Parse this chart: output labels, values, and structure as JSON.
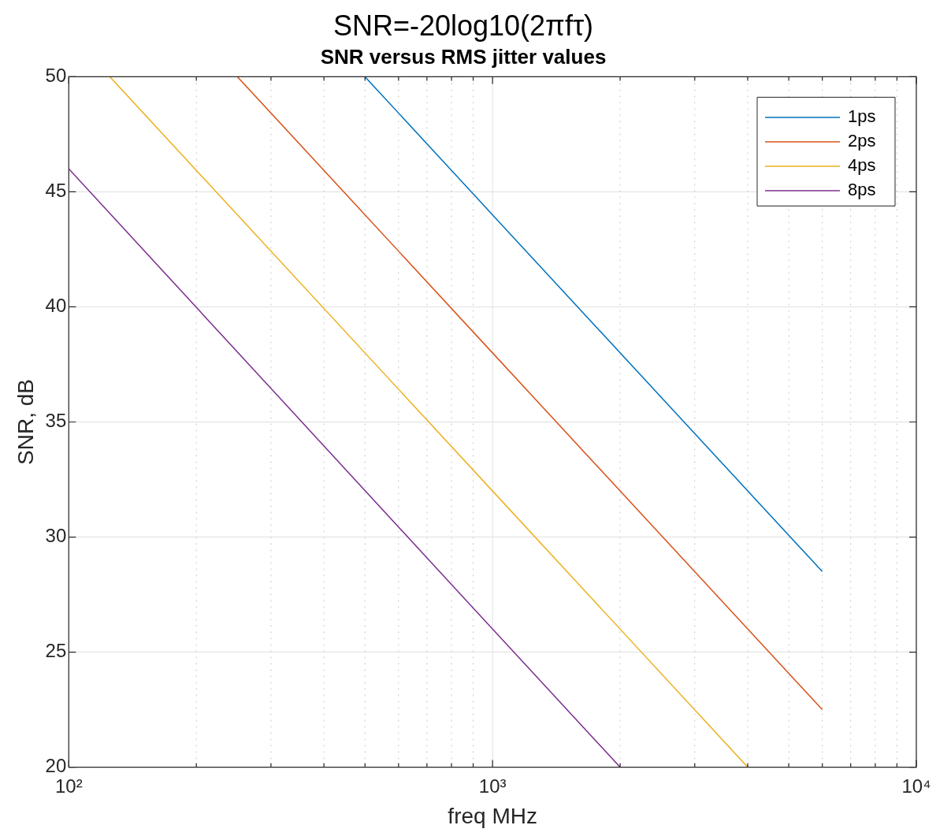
{
  "chart_data": {
    "type": "line",
    "title": "SNR=-20log10(2πfτ)",
    "subtitle": "SNR versus RMS jitter values",
    "xlabel": "freq MHz",
    "ylabel": "SNR, dB",
    "series": [
      {
        "name": "1ps",
        "color": "#0072bd",
        "x": [
          500,
          1000,
          6000
        ],
        "values": [
          50,
          44,
          28.5
        ]
      },
      {
        "name": "2ps",
        "color": "#d95319",
        "x": [
          250,
          1000,
          6000
        ],
        "values": [
          50,
          38,
          22.5
        ]
      },
      {
        "name": "4ps",
        "color": "#edb120",
        "x": [
          125,
          1000,
          4000
        ],
        "values": [
          50,
          32,
          20
        ]
      },
      {
        "name": "8ps",
        "color": "#7e2f8e",
        "x": [
          100,
          1000,
          2000
        ],
        "values": [
          46,
          26,
          20
        ]
      }
    ],
    "log": "x",
    "xlim": [
      100,
      10000
    ],
    "xticks": [
      {
        "value": 100,
        "label": "10²"
      },
      {
        "value": 200,
        "label": null
      },
      {
        "value": 300,
        "label": null
      },
      {
        "value": 400,
        "label": null
      },
      {
        "value": 500,
        "label": null
      },
      {
        "value": 600,
        "label": null
      },
      {
        "value": 700,
        "label": null
      },
      {
        "value": 800,
        "label": null
      },
      {
        "value": 900,
        "label": null
      },
      {
        "value": 1000,
        "label": "10³"
      },
      {
        "value": 2000,
        "label": null
      },
      {
        "value": 3000,
        "label": null
      },
      {
        "value": 4000,
        "label": null
      },
      {
        "value": 5000,
        "label": null
      },
      {
        "value": 6000,
        "label": null
      },
      {
        "value": 7000,
        "label": null
      },
      {
        "value": 8000,
        "label": null
      },
      {
        "value": 9000,
        "label": null
      },
      {
        "value": 10000,
        "label": "10⁴"
      }
    ],
    "ylim": [
      20,
      50
    ],
    "yticks": [
      20,
      25,
      30,
      35,
      40,
      45,
      50
    ],
    "grid": true,
    "legend": "top right",
    "line_style": "solid",
    "marker": "none"
  }
}
